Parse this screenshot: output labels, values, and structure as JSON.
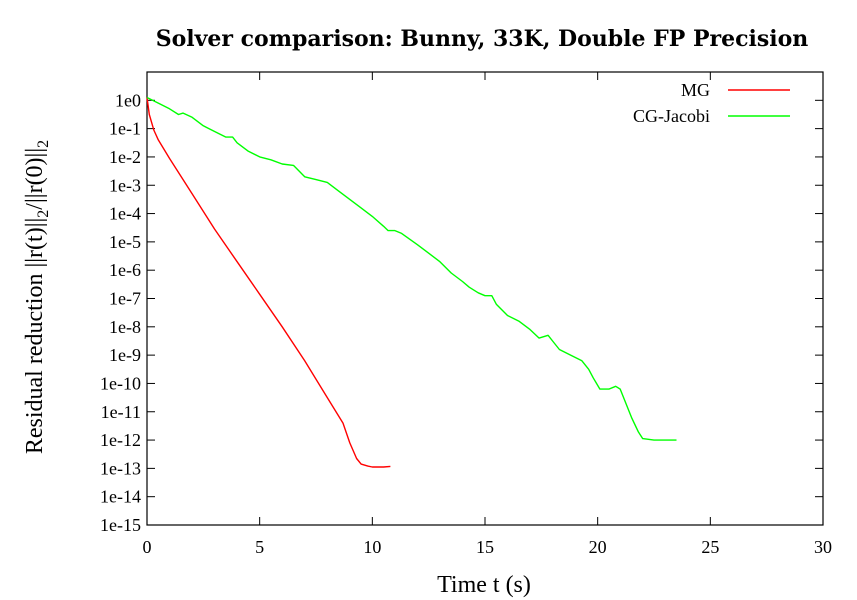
{
  "chart_data": {
    "type": "line",
    "title": "Solver comparison: Bunny, 33K, Double FP Precision",
    "xlabel": "Time t (s)",
    "ylabel": "Residual reduction ||r(t)||2/||r(0)||2",
    "ylabel_parts": [
      "Residual reduction ||r(t)||",
      "2",
      "/||r(0)||",
      "2"
    ],
    "x_scale": "linear",
    "y_scale": "log",
    "xlim": [
      0,
      30
    ],
    "ylim_log10": [
      -15,
      1
    ],
    "x_ticks": [
      0,
      5,
      10,
      15,
      20,
      25,
      30
    ],
    "x_tick_labels": [
      "0",
      "5",
      "10",
      "15",
      "20",
      "25",
      "30"
    ],
    "y_ticks_log10": [
      0,
      -1,
      -2,
      -3,
      -4,
      -5,
      -6,
      -7,
      -8,
      -9,
      -10,
      -11,
      -12,
      -13,
      -14,
      -15
    ],
    "y_tick_labels": [
      "1e0",
      "1e-1",
      "1e-2",
      "1e-3",
      "1e-4",
      "1e-5",
      "1e-6",
      "1e-7",
      "1e-8",
      "1e-9",
      "1e-10",
      "1e-11",
      "1e-12",
      "1e-13",
      "1e-14",
      "1e-15"
    ],
    "grid": false,
    "legend_position": "top-right",
    "series": [
      {
        "name": "MG",
        "color": "#ff0000",
        "points": [
          [
            0,
            0.1
          ],
          [
            0.1,
            -0.5
          ],
          [
            0.3,
            -1.05
          ],
          [
            0.5,
            -1.4
          ],
          [
            1,
            -2.05
          ],
          [
            2,
            -3.3
          ],
          [
            3,
            -4.55
          ],
          [
            4,
            -5.7
          ],
          [
            5,
            -6.85
          ],
          [
            6,
            -8.0
          ],
          [
            7,
            -9.2
          ],
          [
            8,
            -10.5
          ],
          [
            8.7,
            -11.4
          ],
          [
            9.0,
            -12.1
          ],
          [
            9.3,
            -12.65
          ],
          [
            9.5,
            -12.85
          ],
          [
            9.8,
            -12.92
          ],
          [
            10.0,
            -12.95
          ],
          [
            10.5,
            -12.95
          ],
          [
            10.8,
            -12.93
          ]
        ]
      },
      {
        "name": "CG-Jacobi",
        "color": "#00ff00",
        "points": [
          [
            0,
            0.1
          ],
          [
            0.5,
            -0.1
          ],
          [
            1,
            -0.3
          ],
          [
            1.4,
            -0.5
          ],
          [
            1.6,
            -0.45
          ],
          [
            2,
            -0.6
          ],
          [
            2.5,
            -0.9
          ],
          [
            3,
            -1.1
          ],
          [
            3.5,
            -1.3
          ],
          [
            3.8,
            -1.3
          ],
          [
            4,
            -1.5
          ],
          [
            4.5,
            -1.8
          ],
          [
            5,
            -2.0
          ],
          [
            5.5,
            -2.1
          ],
          [
            6,
            -2.25
          ],
          [
            6.5,
            -2.3
          ],
          [
            7,
            -2.7
          ],
          [
            7.5,
            -2.8
          ],
          [
            8,
            -2.9
          ],
          [
            8.5,
            -3.2
          ],
          [
            9,
            -3.5
          ],
          [
            9.5,
            -3.8
          ],
          [
            10,
            -4.1
          ],
          [
            10.5,
            -4.45
          ],
          [
            10.7,
            -4.6
          ],
          [
            11,
            -4.6
          ],
          [
            11.3,
            -4.7
          ],
          [
            12,
            -5.1
          ],
          [
            12.5,
            -5.4
          ],
          [
            13,
            -5.7
          ],
          [
            13.5,
            -6.1
          ],
          [
            14,
            -6.4
          ],
          [
            14.3,
            -6.6
          ],
          [
            14.7,
            -6.8
          ],
          [
            15.0,
            -6.9
          ],
          [
            15.3,
            -6.9
          ],
          [
            15.5,
            -7.2
          ],
          [
            16,
            -7.6
          ],
          [
            16.5,
            -7.8
          ],
          [
            17,
            -8.1
          ],
          [
            17.4,
            -8.4
          ],
          [
            17.8,
            -8.3
          ],
          [
            18,
            -8.5
          ],
          [
            18.3,
            -8.8
          ],
          [
            18.8,
            -9.0
          ],
          [
            19.3,
            -9.2
          ],
          [
            19.6,
            -9.5
          ],
          [
            19.8,
            -9.8
          ],
          [
            20.1,
            -10.2
          ],
          [
            20.5,
            -10.2
          ],
          [
            20.8,
            -10.1
          ],
          [
            21,
            -10.2
          ],
          [
            21.2,
            -10.6
          ],
          [
            21.5,
            -11.2
          ],
          [
            21.8,
            -11.7
          ],
          [
            22.0,
            -11.95
          ],
          [
            22.5,
            -12.0
          ],
          [
            23.5,
            -12.0
          ]
        ]
      }
    ]
  }
}
